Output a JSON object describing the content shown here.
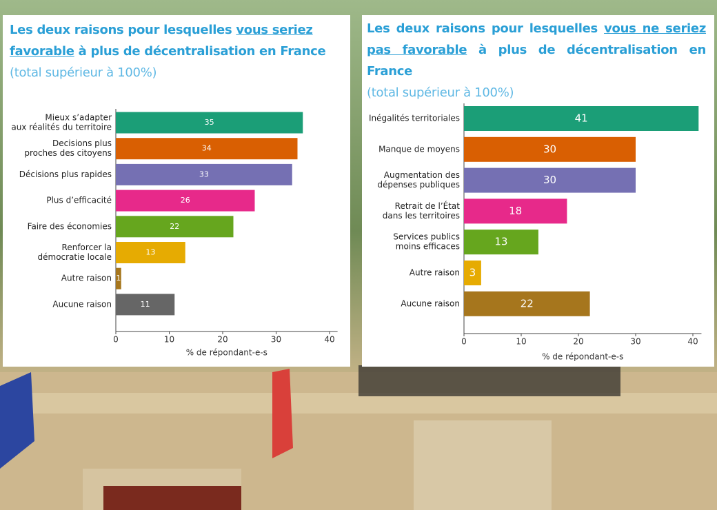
{
  "chart_data": [
    {
      "type": "bar",
      "orientation": "horizontal",
      "title": [
        "Les deux raisons pour lesquelles",
        "vous seriez favorable",
        "à plus de décentralisation en France"
      ],
      "subtitle": "(total supérieur à 100%)",
      "xlabel": "% de répondant-e-s",
      "categories": [
        [
          "Mieux s’adapter",
          "aux réalités du territoire"
        ],
        [
          "Decisions plus",
          "proches des citoyens"
        ],
        [
          "Décisions plus rapides"
        ],
        [
          "Plus d’efficacité"
        ],
        [
          "Faire des économies"
        ],
        [
          "Renforcer la",
          "démocratie locale"
        ],
        [
          "Autre raison"
        ],
        [
          "Aucune raison"
        ]
      ],
      "values": [
        35,
        34,
        33,
        26,
        22,
        13,
        1,
        11
      ],
      "colors": [
        "#1b9e77",
        "#d95f02",
        "#7570b3",
        "#e7298a",
        "#66a61e",
        "#e6ab02",
        "#a6761d",
        "#666666"
      ],
      "xlim": [
        0,
        41.5
      ],
      "xticks": [
        0,
        10,
        20,
        30,
        40
      ]
    },
    {
      "type": "bar",
      "orientation": "horizontal",
      "title": [
        "Les deux raisons pour lesquelles",
        "vous ne seriez pas favorable",
        "à plus de décentralisation en France"
      ],
      "subtitle": "(total supérieur à 100%)",
      "xlabel": "% de répondant-e-s",
      "categories": [
        [
          "Inégalités territoriales"
        ],
        [
          "Manque de moyens"
        ],
        [
          "Augmentation des",
          "dépenses publiques"
        ],
        [
          "Retrait de l’État",
          "dans les territoires"
        ],
        [
          "Services publics",
          "moins efficaces"
        ],
        [
          "Autre raison"
        ],
        [
          "Aucune raison"
        ]
      ],
      "values": [
        41,
        30,
        30,
        18,
        13,
        3,
        22
      ],
      "colors": [
        "#1b9e77",
        "#d95f02",
        "#7570b3",
        "#e7298a",
        "#66a61e",
        "#e6ab02",
        "#a6761d"
      ],
      "xlim": [
        0,
        41.5
      ],
      "xticks": [
        0,
        10,
        20,
        30,
        40
      ]
    }
  ]
}
